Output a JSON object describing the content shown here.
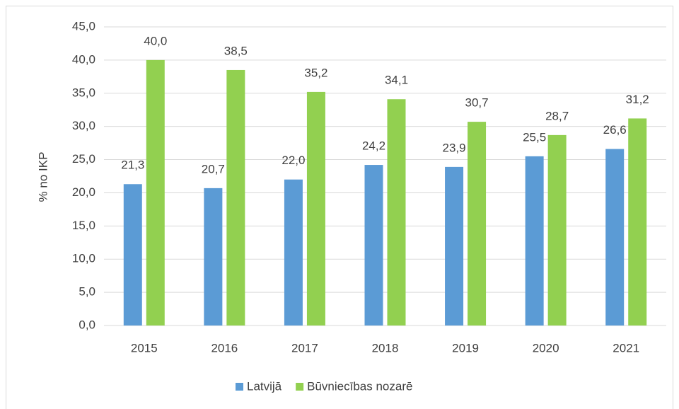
{
  "chart_data": {
    "type": "bar",
    "y_label": "% no IKP",
    "categories": [
      "2015",
      "2016",
      "2017",
      "2018",
      "2019",
      "2020",
      "2021"
    ],
    "series": [
      {
        "name": "Latvijā",
        "color": "#5b9bd5",
        "values": [
          21.3,
          20.7,
          22.0,
          24.2,
          23.9,
          25.5,
          26.6
        ],
        "value_labels": [
          "21,3",
          "20,7",
          "22,0",
          "24,2",
          "23,9",
          "25,5",
          "26,6"
        ]
      },
      {
        "name": "Būvniecības nozarē",
        "color": "#92d050",
        "values": [
          40.0,
          38.5,
          35.2,
          34.1,
          30.7,
          28.7,
          31.2
        ],
        "value_labels": [
          "40,0",
          "38,5",
          "35,2",
          "34,1",
          "30,7",
          "28,7",
          "31,2"
        ]
      }
    ],
    "ylim": [
      0,
      45
    ],
    "yticks": [
      {
        "value": 0,
        "label": "0,0"
      },
      {
        "value": 5,
        "label": "5,0"
      },
      {
        "value": 10,
        "label": "10,0"
      },
      {
        "value": 15,
        "label": "15,0"
      },
      {
        "value": 20,
        "label": "20,0"
      },
      {
        "value": 25,
        "label": "25,0"
      },
      {
        "value": 30,
        "label": "30,0"
      },
      {
        "value": 35,
        "label": "35,0"
      },
      {
        "value": 40,
        "label": "40,0"
      },
      {
        "value": 45,
        "label": "45,0"
      }
    ],
    "grid": true,
    "legend": "bottom"
  }
}
